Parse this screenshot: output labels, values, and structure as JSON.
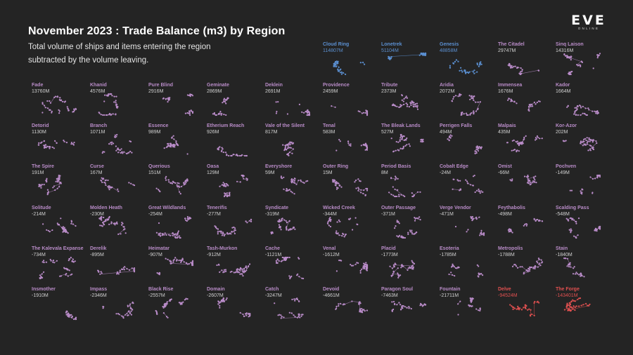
{
  "header": {
    "title": "November 2023 : Trade Balance (m3) by Region",
    "subtitle": "Total volume of ships and items entering the region subtracted by the volume leaving."
  },
  "logo": {
    "text": "EVE",
    "subtext": "ONLINE"
  },
  "colors": {
    "background": "#242424",
    "positive_top": "#5b8fd0",
    "neutral": "#b98cc8",
    "negative_top": "#e05050",
    "text": "#e8e8e8"
  },
  "chart_data": {
    "type": "small-multiples",
    "title": "November 2023 : Trade Balance (m3) by Region",
    "subtitle": "Total volume of ships and items entering the region subtracted by the volume leaving.",
    "unit": "m3",
    "regions": [
      {
        "name": "Cloud Ring",
        "label": "114807M",
        "value_m": 114807,
        "color": "#5b8fd0"
      },
      {
        "name": "Lonetrek",
        "label": "51104M",
        "value_m": 51104,
        "color": "#5b8fd0"
      },
      {
        "name": "Genesis",
        "label": "48858M",
        "value_m": 48858,
        "color": "#5b8fd0"
      },
      {
        "name": "The Citadel",
        "label": "29747M",
        "value_m": 29747,
        "color": "#b98cc8"
      },
      {
        "name": "Sinq Laison",
        "label": "14316M",
        "value_m": 14316,
        "color": "#b98cc8"
      },
      {
        "name": "Fade",
        "label": "13760M",
        "value_m": 13760,
        "color": "#b98cc8"
      },
      {
        "name": "Khanid",
        "label": "4576M",
        "value_m": 4576,
        "color": "#b98cc8"
      },
      {
        "name": "Pure Blind",
        "label": "2916M",
        "value_m": 2916,
        "color": "#b98cc8"
      },
      {
        "name": "Geminate",
        "label": "2869M",
        "value_m": 2869,
        "color": "#b98cc8"
      },
      {
        "name": "Deklein",
        "label": "2691M",
        "value_m": 2691,
        "color": "#b98cc8"
      },
      {
        "name": "Providence",
        "label": "2459M",
        "value_m": 2459,
        "color": "#b98cc8"
      },
      {
        "name": "Tribute",
        "label": "2373M",
        "value_m": 2373,
        "color": "#b98cc8"
      },
      {
        "name": "Aridia",
        "label": "2072M",
        "value_m": 2072,
        "color": "#b98cc8"
      },
      {
        "name": "Immensea",
        "label": "1676M",
        "value_m": 1676,
        "color": "#b98cc8"
      },
      {
        "name": "Kador",
        "label": "1664M",
        "value_m": 1664,
        "color": "#b98cc8"
      },
      {
        "name": "Detorid",
        "label": "1130M",
        "value_m": 1130,
        "color": "#b98cc8"
      },
      {
        "name": "Branch",
        "label": "1071M",
        "value_m": 1071,
        "color": "#b98cc8"
      },
      {
        "name": "Essence",
        "label": "989M",
        "value_m": 989,
        "color": "#b98cc8"
      },
      {
        "name": "Etherium Reach",
        "label": "926M",
        "value_m": 926,
        "color": "#b98cc8"
      },
      {
        "name": "Vale of the Silent",
        "label": "817M",
        "value_m": 817,
        "color": "#b98cc8"
      },
      {
        "name": "Tenal",
        "label": "583M",
        "value_m": 583,
        "color": "#b98cc8"
      },
      {
        "name": "The Bleak Lands",
        "label": "527M",
        "value_m": 527,
        "color": "#b98cc8"
      },
      {
        "name": "Perrigen Falls",
        "label": "494M",
        "value_m": 494,
        "color": "#b98cc8"
      },
      {
        "name": "Malpais",
        "label": "435M",
        "value_m": 435,
        "color": "#b98cc8"
      },
      {
        "name": "Kor-Azor",
        "label": "202M",
        "value_m": 202,
        "color": "#b98cc8"
      },
      {
        "name": "The Spire",
        "label": "191M",
        "value_m": 191,
        "color": "#b98cc8"
      },
      {
        "name": "Curse",
        "label": "167M",
        "value_m": 167,
        "color": "#b98cc8"
      },
      {
        "name": "Querious",
        "label": "151M",
        "value_m": 151,
        "color": "#b98cc8"
      },
      {
        "name": "Oasa",
        "label": "129M",
        "value_m": 129,
        "color": "#b98cc8"
      },
      {
        "name": "Everyshore",
        "label": "59M",
        "value_m": 59,
        "color": "#b98cc8"
      },
      {
        "name": "Outer Ring",
        "label": "15M",
        "value_m": 15,
        "color": "#b98cc8"
      },
      {
        "name": "Period Basis",
        "label": "8M",
        "value_m": 8,
        "color": "#b98cc8"
      },
      {
        "name": "Cobalt Edge",
        "label": "-24M",
        "value_m": -24,
        "color": "#b98cc8"
      },
      {
        "name": "Omist",
        "label": "-66M",
        "value_m": -66,
        "color": "#b98cc8"
      },
      {
        "name": "Pochven",
        "label": "-149M",
        "value_m": -149,
        "color": "#b98cc8"
      },
      {
        "name": "Solitude",
        "label": "-214M",
        "value_m": -214,
        "color": "#b98cc8"
      },
      {
        "name": "Molden Heath",
        "label": "-230M",
        "value_m": -230,
        "color": "#b98cc8"
      },
      {
        "name": "Great Wildlands",
        "label": "-254M",
        "value_m": -254,
        "color": "#b98cc8"
      },
      {
        "name": "Tenerifis",
        "label": "-277M",
        "value_m": -277,
        "color": "#b98cc8"
      },
      {
        "name": "Syndicate",
        "label": "-319M",
        "value_m": -319,
        "color": "#b98cc8"
      },
      {
        "name": "Wicked Creek",
        "label": "-344M",
        "value_m": -344,
        "color": "#b98cc8"
      },
      {
        "name": "Outer Passage",
        "label": "-371M",
        "value_m": -371,
        "color": "#b98cc8"
      },
      {
        "name": "Verge Vendor",
        "label": "-471M",
        "value_m": -471,
        "color": "#b98cc8"
      },
      {
        "name": "Feythabolis",
        "label": "-498M",
        "value_m": -498,
        "color": "#b98cc8"
      },
      {
        "name": "Scalding Pass",
        "label": "-548M",
        "value_m": -548,
        "color": "#b98cc8"
      },
      {
        "name": "The Kalevala Expanse",
        "label": "-734M",
        "value_m": -734,
        "color": "#b98cc8"
      },
      {
        "name": "Derelik",
        "label": "-895M",
        "value_m": -895,
        "color": "#b98cc8"
      },
      {
        "name": "Heimatar",
        "label": "-907M",
        "value_m": -907,
        "color": "#b98cc8"
      },
      {
        "name": "Tash-Murkon",
        "label": "-912M",
        "value_m": -912,
        "color": "#b98cc8"
      },
      {
        "name": "Cache",
        "label": "-1121M",
        "value_m": -1121,
        "color": "#b98cc8"
      },
      {
        "name": "Venal",
        "label": "-1612M",
        "value_m": -1612,
        "color": "#b98cc8"
      },
      {
        "name": "Placid",
        "label": "-1773M",
        "value_m": -1773,
        "color": "#b98cc8"
      },
      {
        "name": "Esoteria",
        "label": "-1785M",
        "value_m": -1785,
        "color": "#b98cc8"
      },
      {
        "name": "Metropolis",
        "label": "-1788M",
        "value_m": -1788,
        "color": "#b98cc8"
      },
      {
        "name": "Stain",
        "label": "-1840M",
        "value_m": -1840,
        "color": "#b98cc8"
      },
      {
        "name": "Insmother",
        "label": "-1910M",
        "value_m": -1910,
        "color": "#b98cc8"
      },
      {
        "name": "Impass",
        "label": "-2346M",
        "value_m": -2346,
        "color": "#b98cc8"
      },
      {
        "name": "Black Rise",
        "label": "-2557M",
        "value_m": -2557,
        "color": "#b98cc8"
      },
      {
        "name": "Domain",
        "label": "-2607M",
        "value_m": -2607,
        "color": "#b98cc8"
      },
      {
        "name": "Catch",
        "label": "-3247M",
        "value_m": -3247,
        "color": "#b98cc8"
      },
      {
        "name": "Devoid",
        "label": "-4661M",
        "value_m": -4661,
        "color": "#b98cc8"
      },
      {
        "name": "Paragon Soul",
        "label": "-7463M",
        "value_m": -7463,
        "color": "#b98cc8"
      },
      {
        "name": "Fountain",
        "label": "-21711M",
        "value_m": -21711,
        "color": "#b98cc8"
      },
      {
        "name": "Delve",
        "label": "-94524M",
        "value_m": -94524,
        "color": "#e05050"
      },
      {
        "name": "The Forge",
        "label": "-143401M",
        "value_m": -143401,
        "color": "#e05050"
      }
    ]
  }
}
